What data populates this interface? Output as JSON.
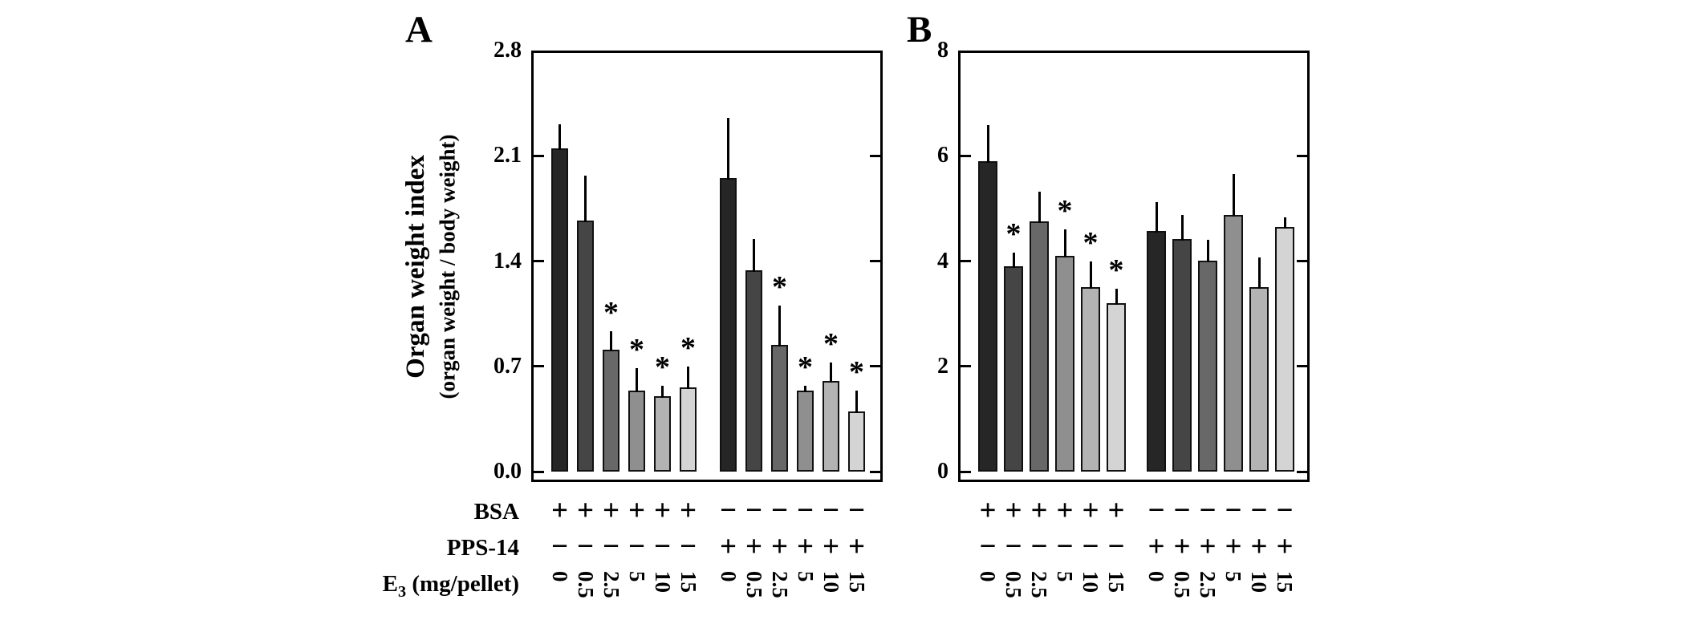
{
  "sig_marker": "*",
  "bar_colors": [
    "#262626",
    "#454545",
    "#686868",
    "#8f8f8f",
    "#b3b3b3",
    "#d4d4d4"
  ],
  "row_labels": {
    "bsa": "BSA",
    "pps14": "PPS-14",
    "e3_prefix": "E",
    "e3_subscript": "3",
    "e3_suffix": " (mg/pellet)"
  },
  "chart_data": [
    {
      "type": "bar",
      "panel_label": "A",
      "ylabel": "Organ weight index",
      "ylabel_sub": "(organ weight / body weight)",
      "ylim": [
        0,
        2.8
      ],
      "ytick_labels": [
        "0.0",
        "0.7",
        "1.4",
        "2.1",
        "2.8"
      ],
      "dose_labels": [
        "0",
        "0.5",
        "2.5",
        "5",
        "10",
        "15"
      ],
      "legend_rows": [
        "BSA",
        "PPS-14",
        "E3 (mg/pellet)"
      ],
      "groups": [
        {
          "bsa": "+",
          "pps14": "−",
          "values": [
            2.15,
            1.67,
            0.81,
            0.54,
            0.5,
            0.56
          ],
          "errors": [
            0.16,
            0.3,
            0.12,
            0.15,
            0.07,
            0.14
          ],
          "significant": [
            false,
            false,
            true,
            true,
            true,
            true
          ]
        },
        {
          "bsa": "−",
          "pps14": "+",
          "values": [
            1.95,
            1.34,
            0.84,
            0.54,
            0.6,
            0.4
          ],
          "errors": [
            0.4,
            0.21,
            0.26,
            0.03,
            0.12,
            0.14
          ],
          "significant": [
            false,
            false,
            true,
            true,
            true,
            true
          ]
        }
      ]
    },
    {
      "type": "bar",
      "panel_label": "B",
      "ylabel": "",
      "ylabel_sub": "",
      "ylim": [
        0,
        8
      ],
      "ytick_labels": [
        "0",
        "2",
        "4",
        "6",
        "8"
      ],
      "dose_labels": [
        "0",
        "0.5",
        "2.5",
        "5",
        "10",
        "15"
      ],
      "legend_rows": [
        "BSA",
        "PPS-14",
        "E3 (mg/pellet)"
      ],
      "groups": [
        {
          "bsa": "+",
          "pps14": "−",
          "values": [
            5.9,
            3.9,
            4.75,
            4.1,
            3.5,
            3.2
          ],
          "errors": [
            0.68,
            0.26,
            0.56,
            0.5,
            0.48,
            0.27
          ],
          "significant": [
            false,
            true,
            false,
            true,
            true,
            true
          ]
        },
        {
          "bsa": "−",
          "pps14": "+",
          "values": [
            4.57,
            4.42,
            4.0,
            4.87,
            3.5,
            4.64
          ],
          "errors": [
            0.55,
            0.45,
            0.4,
            0.77,
            0.57,
            0.18
          ],
          "significant": [
            false,
            false,
            false,
            false,
            false,
            false
          ]
        }
      ]
    }
  ]
}
